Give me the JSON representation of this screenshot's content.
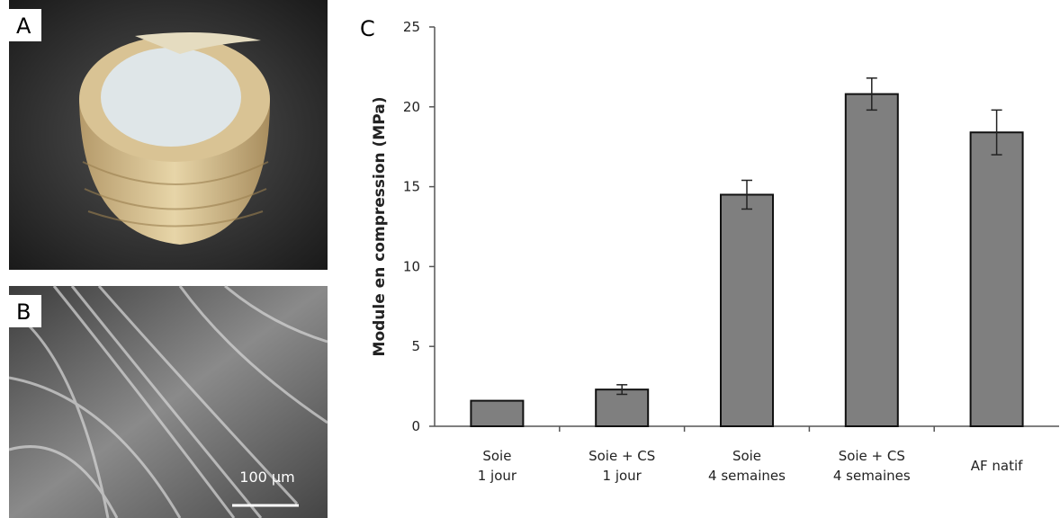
{
  "panels": {
    "a": "A",
    "b": "B",
    "c": "C"
  },
  "scale_bar": "100 µm",
  "chart_data": {
    "type": "bar",
    "y_label": "Module en compression (MPa)",
    "categories": [
      [
        "Soie",
        "1 jour"
      ],
      [
        "Soie + CS",
        "1 jour"
      ],
      [
        "Soie",
        "4 semaines"
      ],
      [
        "Soie + CS",
        "4 semaines"
      ],
      [
        "AF natif"
      ]
    ],
    "values": [
      1.6,
      2.3,
      14.5,
      20.8,
      18.4
    ],
    "errors": [
      null,
      0.3,
      0.9,
      1.0,
      1.4
    ],
    "color": "#7f7f7f",
    "ylim": [
      0,
      25
    ],
    "yticks": [
      0,
      5,
      10,
      15,
      20,
      25
    ]
  }
}
